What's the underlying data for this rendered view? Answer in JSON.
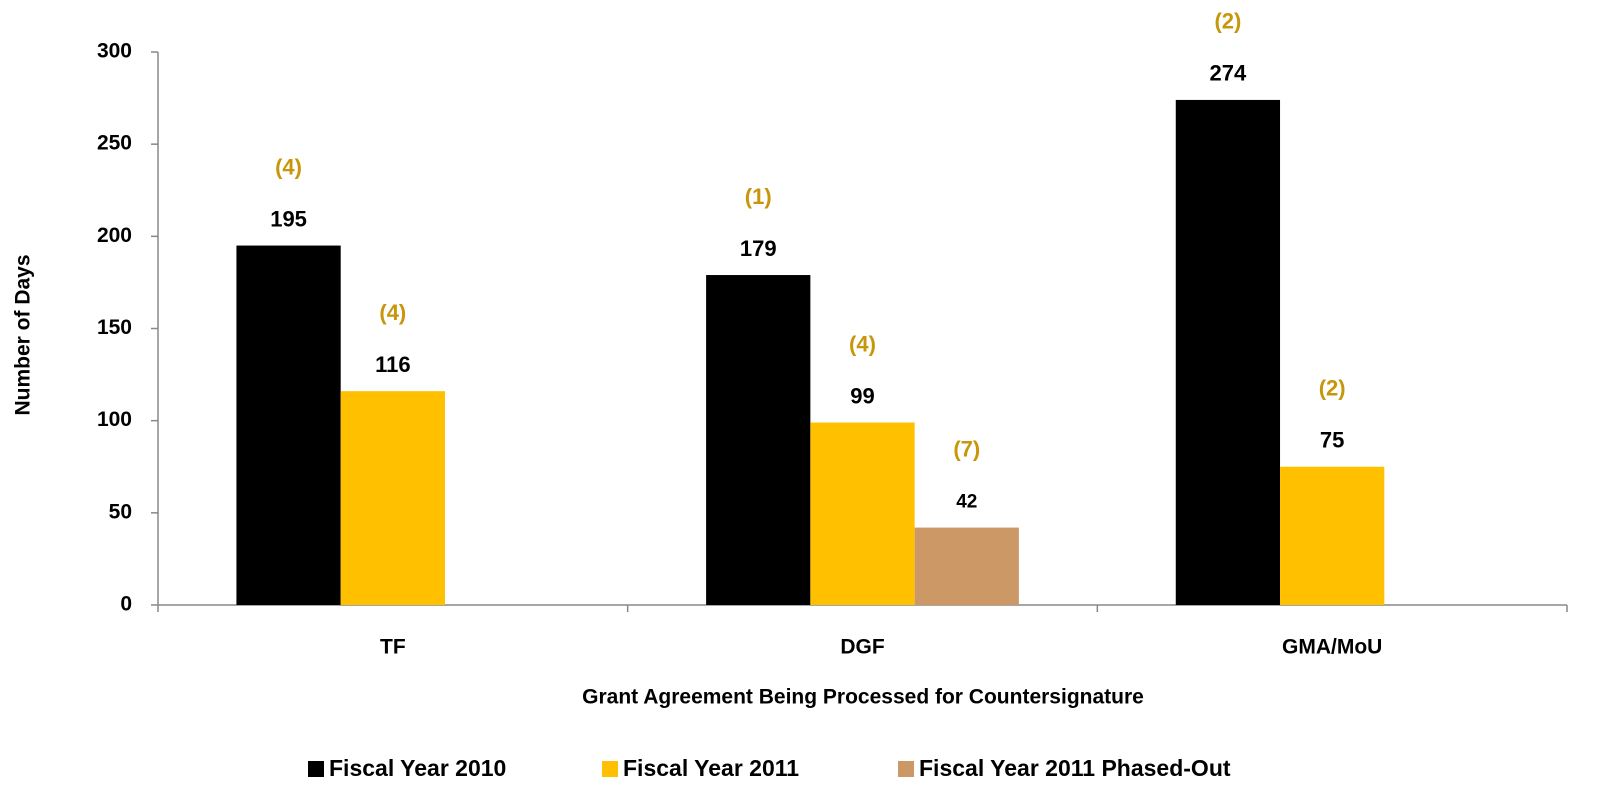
{
  "chart_data": {
    "type": "bar",
    "categories": [
      "TF",
      "DGF",
      "GMA/MoU"
    ],
    "series": [
      {
        "name": "Fiscal Year 2010",
        "color": "#000000",
        "values": [
          195,
          179,
          274
        ],
        "annotations": [
          "(4)",
          "(1)",
          "(2)"
        ]
      },
      {
        "name": "Fiscal Year 2011",
        "color": "#ffc000",
        "values": [
          116,
          99,
          75
        ],
        "annotations": [
          "(4)",
          "(4)",
          "(2)"
        ]
      },
      {
        "name": "Fiscal Year 2011 Phased-Out",
        "color": "#cc9966",
        "values": [
          null,
          42,
          null
        ],
        "annotations": [
          null,
          "(7)",
          null
        ]
      }
    ],
    "ylim": [
      0,
      300
    ],
    "yticks": [
      0,
      50,
      100,
      150,
      200,
      250,
      300
    ],
    "y_label": "Number of Days",
    "x_label": "Grant Agreement Being Processed for Countersignature",
    "legend": "bottom"
  }
}
